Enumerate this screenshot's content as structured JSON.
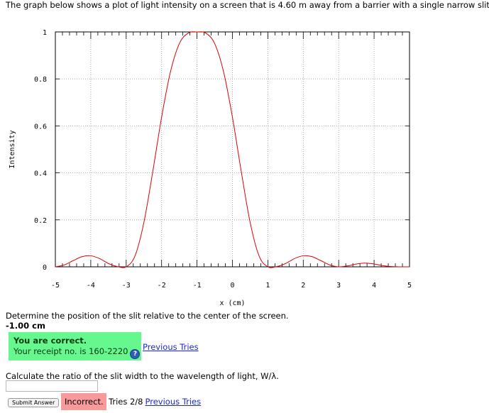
{
  "intro_text": "The graph below shows a plot of light intensity on a screen that is 4.60 m away from a barrier with a single narrow slit.",
  "question1": {
    "text": "Determine the position of the slit relative to the center of the screen.",
    "answer": "-1.00 cm",
    "status_title": "You are correct.",
    "receipt": "Your receipt no. is 160-2220",
    "previous_tries_label": "Previous Tries"
  },
  "question2": {
    "text": "Calculate the ratio of the slit width to the wavelength of light, W/λ.",
    "input_value": "",
    "submit_label": "Submit Answer",
    "status": "Incorrect.",
    "tries": "Tries 2/8",
    "previous_tries_label": "Previous Tries"
  },
  "chart_data": {
    "type": "line",
    "xlabel": "x (cm)",
    "ylabel": "Intensity",
    "xlim": [
      -5,
      5
    ],
    "ylim": [
      0,
      1
    ],
    "x_ticks": [
      -5,
      -4,
      -3,
      -2,
      -1,
      0,
      1,
      2,
      3,
      4,
      5
    ],
    "y_ticks": [
      0,
      0.2,
      0.4,
      0.6,
      0.8,
      1
    ],
    "y_tick_labels": [
      "0",
      "0.2",
      "0.4",
      "0.6",
      "0.8",
      "1"
    ],
    "grid": true,
    "line_color": "#e00000",
    "series": [
      {
        "x": [
          -5,
          -4.75,
          -4.5,
          -4.25,
          -4,
          -3.75,
          -3.5,
          -3.25,
          -3,
          -2.75,
          -2.5,
          -2.25,
          -2,
          -1.75,
          -1.5,
          -1.25,
          -1,
          -0.75,
          -0.5,
          -0.25,
          0,
          0.25,
          0.5,
          0.75,
          1,
          1.25,
          1.5,
          1.75,
          2,
          2.25,
          2.5,
          2.75,
          3,
          3.25,
          3.5,
          3.75,
          4,
          4.25,
          4.5,
          4.75,
          5
        ],
        "y": [
          0.0,
          0.008,
          0.026,
          0.043,
          0.047,
          0.035,
          0.014,
          0.001,
          0.0,
          0.047,
          0.189,
          0.405,
          0.637,
          0.83,
          0.95,
          0.995,
          1.0,
          0.995,
          0.95,
          0.83,
          0.637,
          0.405,
          0.189,
          0.047,
          0.0,
          0.001,
          0.014,
          0.035,
          0.047,
          0.043,
          0.026,
          0.008,
          0.0,
          0.004,
          0.012,
          0.016,
          0.012,
          0.005,
          0.001,
          0.0,
          0.0
        ]
      }
    ]
  }
}
